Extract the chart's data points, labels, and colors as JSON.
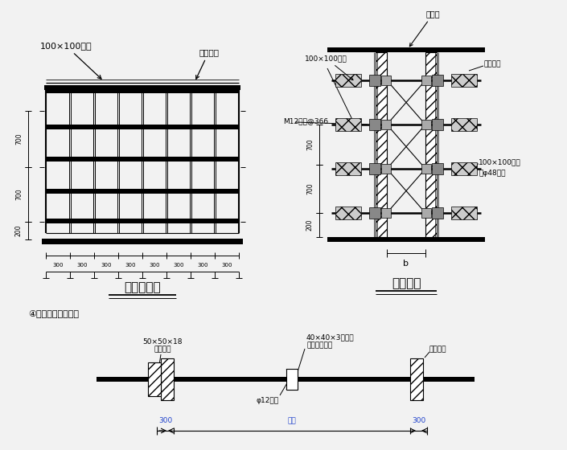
{
  "bg_color": "#f2f2f2",
  "label_wood_top": "100×100木枋",
  "label_clamp": "拉紧扣件",
  "label_plywood": "胶合板",
  "label_bolt_m12": "M12螺栓@366",
  "label_wood2": "100×100木枋",
  "label_steel_pipe": "及φ48钢管",
  "label_screw_title": "④止水螺栓示意图：",
  "label_wood_pad1": "50×50×18",
  "label_wood_pad2": "木板垫片",
  "label_water_stop1": "40×40×3止水片",
  "label_water_stop2": "（双面满焊）",
  "label_formwork": "墙体模板",
  "label_bolt12": "φ12螺栓",
  "label_wall_thick": "墙厚",
  "title1": "墙模立面图",
  "title2": "墙剖面图"
}
